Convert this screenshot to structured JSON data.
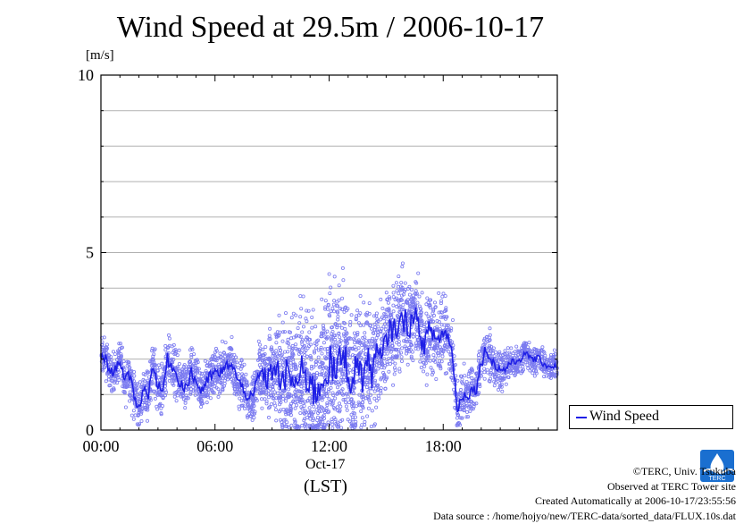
{
  "page": {
    "title": "Wind Speed at 29.5m / 2006-10-17",
    "unit_label": "[m/s]",
    "legend_label": "Wind Speed",
    "date_label": "Oct-17",
    "timezone_label": "(LST)",
    "credits": {
      "copyright": "©TERC, Univ. Tsukuba",
      "observed": "Observed at TERC Tower site",
      "created": "Created Automatically at 2006-10-17/23:55:56",
      "source": "Data source : /home/hojyo/new/TERC-data/sorted_data/FLUX.10s.dat"
    },
    "logo_text": "TERC"
  },
  "chart_data": {
    "type": "line",
    "title": "Wind Speed at 29.5m / 2006-10-17",
    "ylabel": "[m/s]",
    "xlabel": "(LST)",
    "ylim": [
      0,
      10
    ],
    "xlim_hours": [
      0,
      24
    ],
    "y_ticks": [
      "0",
      "5",
      "10"
    ],
    "x_ticks": [
      "00:00",
      "06:00",
      "12:00",
      "18:00"
    ],
    "x_tick_hours": [
      0,
      6,
      12,
      18
    ],
    "grid": true,
    "legend_position": "right",
    "scatter_color": "#7b7bf0",
    "line_color": "#1f1fe6",
    "series": [
      {
        "name": "Wind Speed",
        "x_hours": [
          0.0,
          0.25,
          0.5,
          0.75,
          1.0,
          1.25,
          1.5,
          1.75,
          2.0,
          2.25,
          2.5,
          2.75,
          3.0,
          3.25,
          3.5,
          3.75,
          4.0,
          4.25,
          4.5,
          4.75,
          5.0,
          5.25,
          5.5,
          5.75,
          6.0,
          6.25,
          6.5,
          6.75,
          7.0,
          7.25,
          7.5,
          7.75,
          8.0,
          8.25,
          8.5,
          8.75,
          9.0,
          9.25,
          9.5,
          9.75,
          10.0,
          10.25,
          10.5,
          10.75,
          11.0,
          11.25,
          11.5,
          11.75,
          12.0,
          12.25,
          12.5,
          12.75,
          13.0,
          13.25,
          13.5,
          13.75,
          14.0,
          14.25,
          14.5,
          14.75,
          15.0,
          15.25,
          15.5,
          15.75,
          16.0,
          16.25,
          16.5,
          16.75,
          17.0,
          17.25,
          17.5,
          17.75,
          18.0,
          18.25,
          18.5,
          18.75,
          19.0,
          19.25,
          19.5,
          19.75,
          20.0,
          20.25,
          20.5,
          20.75,
          21.0,
          21.25,
          21.5,
          21.75,
          22.0,
          22.25,
          22.5,
          22.75,
          23.0,
          23.25,
          23.5,
          23.75
        ],
        "values": [
          2.1,
          2.0,
          1.6,
          1.7,
          2.0,
          1.4,
          1.5,
          1.0,
          0.6,
          1.2,
          1.0,
          1.9,
          1.2,
          1.1,
          2.0,
          1.8,
          1.5,
          1.3,
          1.2,
          1.6,
          1.4,
          1.1,
          1.3,
          1.5,
          1.6,
          1.6,
          1.7,
          1.9,
          1.7,
          1.3,
          1.2,
          0.9,
          0.9,
          1.5,
          1.6,
          1.4,
          1.7,
          1.8,
          1.2,
          1.6,
          1.5,
          1.2,
          1.7,
          1.4,
          1.5,
          1.0,
          1.3,
          1.5,
          1.9,
          1.6,
          1.8,
          2.2,
          1.7,
          1.2,
          2.1,
          1.4,
          2.0,
          1.6,
          2.2,
          1.9,
          2.6,
          2.8,
          2.9,
          3.0,
          3.1,
          2.9,
          3.4,
          2.7,
          2.4,
          2.8,
          2.7,
          2.5,
          2.8,
          2.6,
          2.1,
          0.5,
          1.0,
          1.0,
          1.1,
          1.2,
          1.9,
          2.3,
          2.0,
          1.8,
          1.7,
          1.7,
          1.9,
          1.9,
          2.0,
          2.1,
          2.1,
          2.0,
          2.0,
          1.9,
          1.8,
          1.8
        ],
        "spread": [
          0.4,
          0.4,
          0.4,
          0.4,
          0.4,
          0.5,
          0.5,
          0.5,
          0.4,
          0.5,
          0.5,
          0.5,
          0.5,
          0.5,
          0.5,
          0.5,
          0.5,
          0.5,
          0.5,
          0.5,
          0.5,
          0.5,
          0.5,
          0.5,
          0.5,
          0.5,
          0.5,
          0.5,
          0.5,
          0.5,
          0.5,
          0.5,
          0.6,
          0.7,
          0.8,
          0.9,
          1.0,
          1.1,
          1.2,
          1.2,
          1.3,
          1.4,
          1.4,
          1.4,
          1.5,
          1.5,
          1.6,
          1.6,
          1.6,
          1.6,
          1.5,
          1.5,
          1.4,
          1.4,
          1.3,
          1.3,
          1.2,
          1.2,
          1.1,
          1.1,
          1.0,
          1.0,
          1.0,
          1.0,
          1.0,
          0.9,
          0.9,
          0.9,
          0.8,
          0.8,
          0.8,
          0.8,
          0.7,
          0.7,
          0.6,
          0.5,
          0.5,
          0.5,
          0.5,
          0.5,
          0.5,
          0.5,
          0.4,
          0.4,
          0.4,
          0.4,
          0.3,
          0.3,
          0.3,
          0.3,
          0.3,
          0.3,
          0.3,
          0.3,
          0.3,
          0.3
        ]
      }
    ]
  }
}
